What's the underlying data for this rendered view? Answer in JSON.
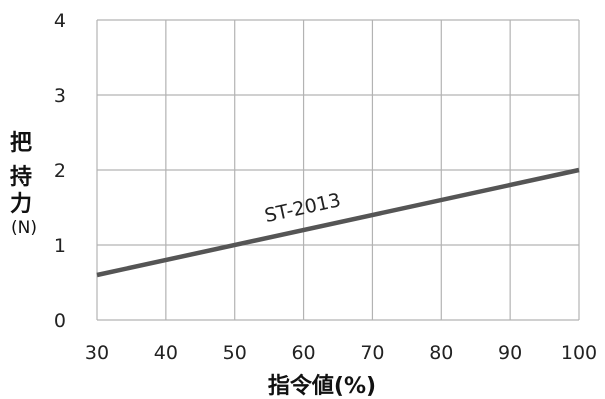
{
  "chart_data": {
    "type": "line",
    "title": "",
    "xlabel": "指令値(%)",
    "ylabel": "把持力",
    "ylabel_unit": "(N)",
    "xlim": [
      30,
      100
    ],
    "ylim": [
      0,
      4
    ],
    "x_ticks": [
      "30",
      "40",
      "50",
      "60",
      "70",
      "80",
      "90",
      "100"
    ],
    "y_ticks": [
      "0",
      "1",
      "2",
      "3",
      "4"
    ],
    "grid": true,
    "series": [
      {
        "name": "ST-2013",
        "x": [
          30,
          100
        ],
        "y": [
          0.6,
          2.0
        ],
        "color": "#555555"
      }
    ]
  }
}
